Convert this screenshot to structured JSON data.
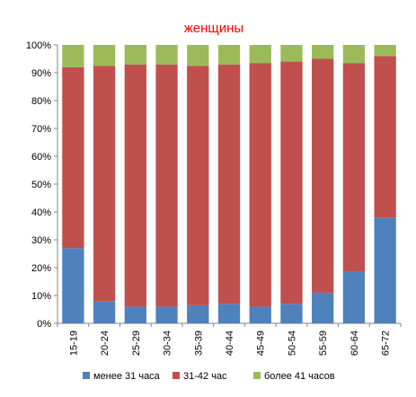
{
  "chart_data": {
    "type": "bar",
    "stacked": true,
    "title": "женщины",
    "categories": [
      "15-19",
      "20-24",
      "25-29",
      "30-34",
      "35-39",
      "40-44",
      "45-49",
      "50-54",
      "55-59",
      "60-64",
      "65-72"
    ],
    "series": [
      {
        "name": "менее 31 часа",
        "color": "#4f81bd",
        "values": [
          27,
          8,
          6,
          6,
          6.5,
          7,
          6,
          7,
          11,
          18.5,
          38
        ]
      },
      {
        "name": "31-42 час",
        "color": "#c0504d",
        "values": [
          65,
          84.5,
          87,
          87,
          86,
          86,
          87.5,
          87,
          84,
          75,
          58
        ]
      },
      {
        "name": "более 41 часов",
        "color": "#9bbb59",
        "values": [
          8,
          7.5,
          7,
          7,
          7.5,
          7,
          6.5,
          6,
          5,
          6.5,
          4
        ]
      }
    ],
    "ytick_labels": [
      "0%",
      "10%",
      "20%",
      "30%",
      "40%",
      "50%",
      "60%",
      "70%",
      "80%",
      "90%",
      "100%"
    ],
    "ylim": [
      0,
      100
    ],
    "grid": false,
    "legend_position": "bottom"
  }
}
